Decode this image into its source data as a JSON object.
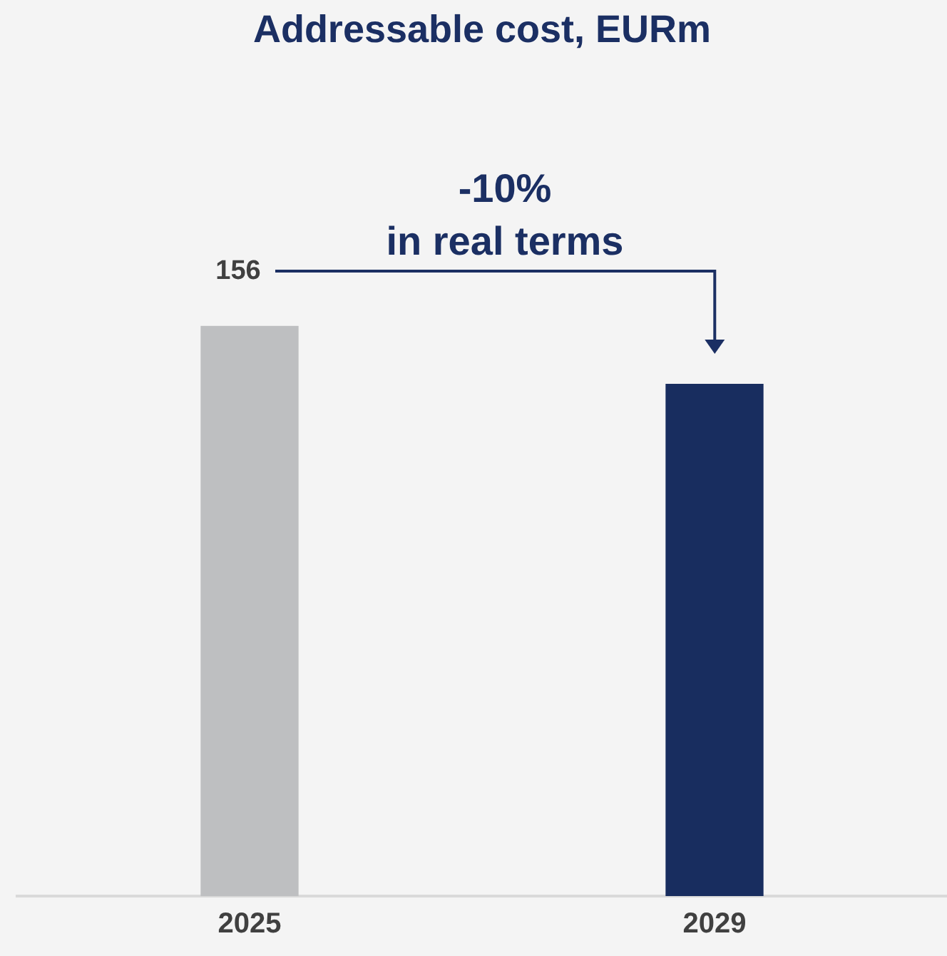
{
  "chart_data": {
    "type": "bar",
    "title": "Addressable cost, EURm",
    "categories": [
      "2025",
      "2029"
    ],
    "values": [
      156,
      140
    ],
    "colors": [
      "#bebfc1",
      "#182d5f"
    ],
    "value_labels": [
      "156",
      null
    ],
    "annotations": [
      "-10%\nin real terms"
    ],
    "grid": false,
    "legend": false
  }
}
